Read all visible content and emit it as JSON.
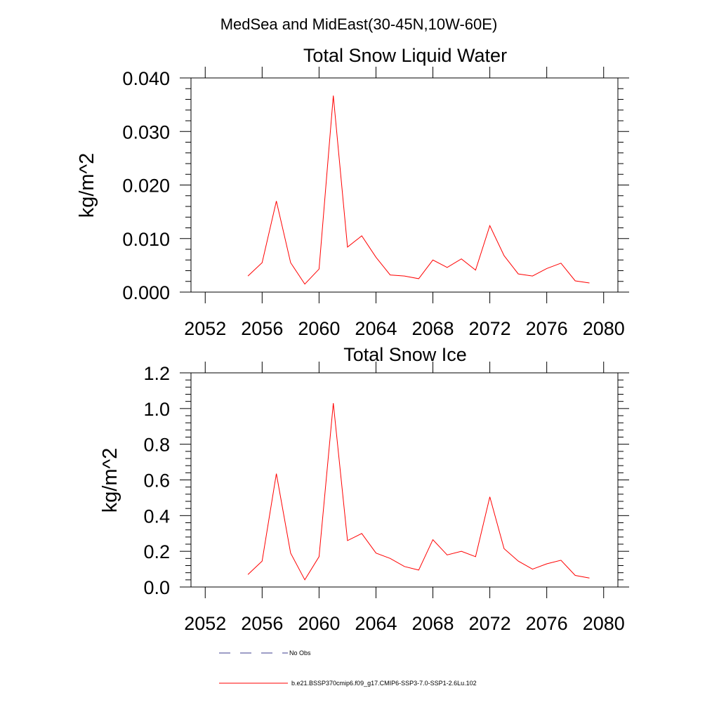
{
  "figure": {
    "suptitle": "MedSea and MidEast(30-45N,10W-60E)"
  },
  "chart_data": [
    {
      "type": "line",
      "title": "Total Snow Liquid Water",
      "xlabel": "",
      "ylabel": "kg/m^2",
      "xlim": [
        2051,
        2081
      ],
      "ylim": [
        0.0,
        0.04
      ],
      "xticks": [
        2052,
        2056,
        2060,
        2064,
        2068,
        2072,
        2076,
        2080
      ],
      "yticks": [
        0.0,
        0.01,
        0.02,
        0.03,
        0.04
      ],
      "ytick_labels": [
        "0.000",
        "0.010",
        "0.020",
        "0.030",
        "0.040"
      ],
      "x": [
        2055,
        2056,
        2057,
        2058,
        2059,
        2060,
        2061,
        2062,
        2063,
        2064,
        2065,
        2066,
        2067,
        2068,
        2069,
        2070,
        2071,
        2072,
        2073,
        2074,
        2075,
        2076,
        2077,
        2078,
        2079
      ],
      "series": [
        {
          "name": "b.e21.BSSP370cmip6.f09_g17.CMIP6-SSP3-7.0-SSP1-2.6Lu.102",
          "color": "#ff0000",
          "values": [
            0.003,
            0.0055,
            0.017,
            0.0055,
            0.0015,
            0.0043,
            0.0367,
            0.0084,
            0.0105,
            0.0065,
            0.0032,
            0.003,
            0.0025,
            0.006,
            0.0046,
            0.0062,
            0.0041,
            0.0124,
            0.0068,
            0.0034,
            0.003,
            0.0044,
            0.0054,
            0.0021,
            0.0017
          ]
        }
      ]
    },
    {
      "type": "line",
      "title": "Total Snow Ice",
      "xlabel": "",
      "ylabel": "kg/m^2",
      "xlim": [
        2051,
        2081
      ],
      "ylim": [
        0.0,
        1.2
      ],
      "xticks": [
        2052,
        2056,
        2060,
        2064,
        2068,
        2072,
        2076,
        2080
      ],
      "yticks": [
        0.0,
        0.2,
        0.4,
        0.6,
        0.8,
        1.0,
        1.2
      ],
      "ytick_labels": [
        "0.0",
        "0.2",
        "0.4",
        "0.6",
        "0.8",
        "1.0",
        "1.2"
      ],
      "x": [
        2055,
        2056,
        2057,
        2058,
        2059,
        2060,
        2061,
        2062,
        2063,
        2064,
        2065,
        2066,
        2067,
        2068,
        2069,
        2070,
        2071,
        2072,
        2073,
        2074,
        2075,
        2076,
        2077,
        2078,
        2079
      ],
      "series": [
        {
          "name": "b.e21.BSSP370cmip6.f09_g17.CMIP6-SSP3-7.0-SSP1-2.6Lu.102",
          "color": "#ff0000",
          "values": [
            0.07,
            0.145,
            0.635,
            0.19,
            0.04,
            0.17,
            1.03,
            0.26,
            0.3,
            0.19,
            0.16,
            0.115,
            0.095,
            0.265,
            0.18,
            0.2,
            0.17,
            0.505,
            0.215,
            0.145,
            0.1,
            0.13,
            0.15,
            0.065,
            0.05
          ]
        }
      ]
    }
  ],
  "legend": {
    "placement": "bottom",
    "items": [
      {
        "label": "No Obs",
        "style": "dashed",
        "color": "#3d3d8f"
      },
      {
        "label": "b.e21.BSSP370cmip6.f09_g17.CMIP6-SSP3-7.0-SSP1-2.6Lu.102",
        "style": "solid",
        "color": "#ff0000"
      }
    ]
  }
}
